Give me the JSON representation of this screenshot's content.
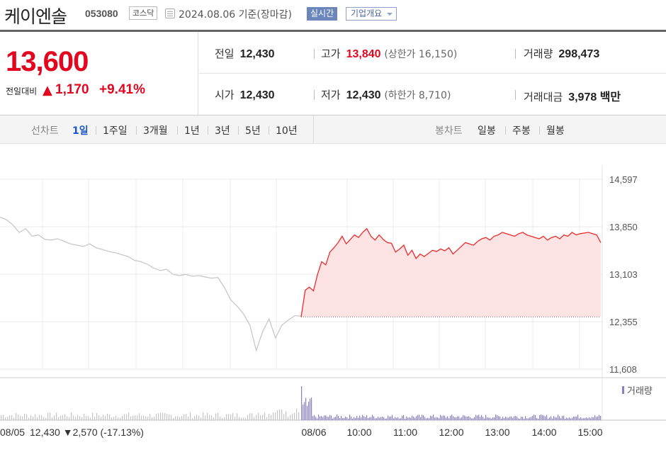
{
  "header": {
    "name": "케이엔솔",
    "code": "053080",
    "market": "코스닥",
    "date": "2024.08.06 기준(장마감)",
    "realtime": "실시간",
    "company": "기업개요"
  },
  "price": {
    "current": "13,600",
    "diff_label": "전일대비",
    "diff": "1,170",
    "rate": "+9.41%",
    "direction": "up"
  },
  "stats": {
    "prev_label": "전일",
    "prev": "12,430",
    "high_label": "고가",
    "high": "13,840",
    "upper_limit": "(상한가 16,150)",
    "volume_label": "거래량",
    "volume": "298,473",
    "open_label": "시가",
    "open": "12,430",
    "low_label": "저가",
    "low": "12,430",
    "lower_limit": "(하한가 8,710)",
    "amount_label": "거래대금",
    "amount": "3,978 백만"
  },
  "tabs": {
    "line_label": "선차트",
    "periods": [
      "1일",
      "1주일",
      "3개월",
      "1년",
      "3년",
      "5년",
      "10년"
    ],
    "selected": "1일",
    "candle_label": "봉차트",
    "candles": [
      "일봉",
      "주봉",
      "월봉"
    ]
  },
  "chart_data": {
    "type": "line",
    "y_ticks": [
      "14,597",
      "13,850",
      "13,103",
      "12,355",
      "11,608"
    ],
    "ylim": [
      11608,
      14597
    ],
    "x_labels": [
      "08/06",
      "10:00",
      "11:00",
      "12:00",
      "13:00",
      "14:00",
      "15:00"
    ],
    "prev_day_label": "08/05",
    "prev_close": 12430,
    "prev_close_text": "12,430",
    "prev_change_text": "▼2,570 (-17.13%)",
    "volume_legend": "거래량",
    "colors": {
      "today": "#ee2b2b",
      "today_fill": "#fde3e4",
      "prev": "#c8c8c8",
      "volume": "#8a7fc4"
    },
    "prev_series": [
      14000,
      13960,
      13880,
      13760,
      13820,
      13700,
      13720,
      13650,
      13640,
      13660,
      13620,
      13580,
      13560,
      13540,
      13580,
      13520,
      13490,
      13460,
      13440,
      13410,
      13380,
      13320,
      13300,
      13260,
      13200,
      13160,
      13180,
      13100,
      13080,
      13100,
      13070,
      13080,
      13060,
      13040,
      13050,
      12900,
      12700,
      12600,
      12480,
      12300,
      11900,
      12200,
      12400,
      12100,
      12300,
      12380,
      12450,
      12440
    ],
    "today_series": [
      12430,
      12850,
      12900,
      12840,
      13100,
      13300,
      13250,
      13450,
      13520,
      13600,
      13700,
      13580,
      13650,
      13720,
      13680,
      13760,
      13820,
      13700,
      13640,
      13720,
      13650,
      13600,
      13590,
      13450,
      13500,
      13560,
      13400,
      13480,
      13350,
      13420,
      13380,
      13430,
      13480,
      13460,
      13500,
      13470,
      13520,
      13420,
      13480,
      13540,
      13600,
      13580,
      13560,
      13620,
      13660,
      13680,
      13640,
      13700,
      13720,
      13760,
      13740,
      13720,
      13700,
      13740,
      13760,
      13720,
      13700,
      13680,
      13660,
      13700,
      13640,
      13680,
      13700,
      13660,
      13720,
      13700,
      13760,
      13720,
      13740,
      13750,
      13760,
      13740,
      13720,
      13600
    ]
  }
}
